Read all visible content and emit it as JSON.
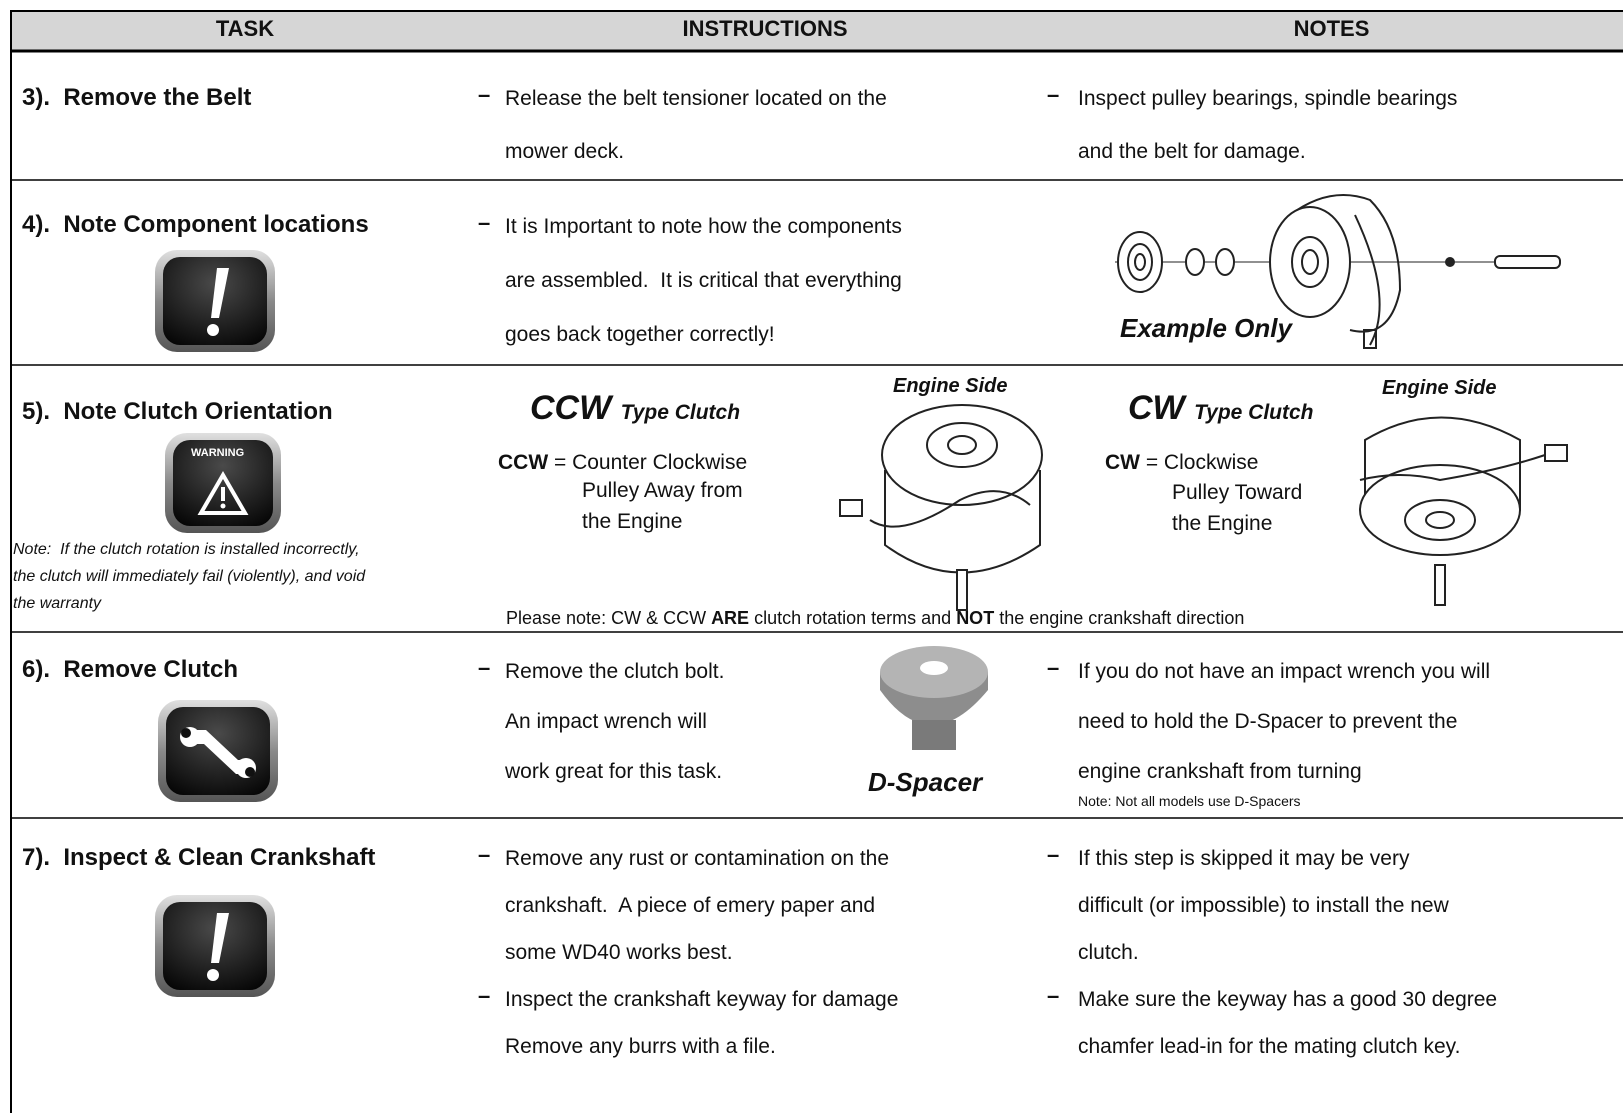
{
  "header": [
    "TASK",
    "INSTRUCTIONS",
    "NOTES"
  ],
  "rows": [
    {
      "task": "3).  Remove the Belt",
      "instructions": [
        [
          "Release the belt tensioner located on the",
          "mower deck."
        ]
      ],
      "notes": [
        [
          "Inspect pulley bearings, spindle bearings",
          "and the belt for damage."
        ]
      ]
    },
    {
      "task": "4).  Note Component locations",
      "instructions": [
        [
          "It is Important to note how the components",
          "are assembled.  It is critical that everything",
          "goes back together correctly!"
        ]
      ],
      "image_caption": "Example Only"
    },
    {
      "task": "5).  Note Clutch Orientation",
      "icon_label": "WARNING",
      "note": [
        "Note:  If the clutch rotation is installed incorrectly,",
        "the clutch will immediately fail (violently), and void",
        "the warranty"
      ],
      "ccw": {
        "abbr": "CCW",
        "type": "Type Clutch",
        "definition_abbr": "CCW",
        "definition": " = Counter Clockwise",
        "lines": [
          "Pulley Away from",
          "the Engine"
        ],
        "image_label": "Engine Side"
      },
      "cw": {
        "abbr": "CW",
        "type": "Type Clutch",
        "definition_abbr": "CW",
        "definition": " = Clockwise",
        "lines": [
          "Pulley Toward",
          "the Engine"
        ],
        "image_label": "Engine Side"
      },
      "footnote": [
        "Please note: CW & CCW ",
        "ARE",
        " clutch rotation terms and ",
        "NOT",
        " the engine crankshaft direction"
      ]
    },
    {
      "task": "6).  Remove Clutch",
      "instructions": [
        [
          "Remove the clutch bolt.",
          "An impact wrench will",
          "work great for this task."
        ]
      ],
      "image_caption": "D-Spacer",
      "notes": [
        [
          "If you do not have an impact wrench you will",
          "need to hold the D-Spacer to prevent the",
          "engine crankshaft from turning"
        ]
      ],
      "notes_small": "Note: Not all models use D-Spacers"
    },
    {
      "task": "7).  Inspect & Clean Crankshaft",
      "instructions": [
        [
          "Remove any rust or contamination on the",
          "crankshaft.  A piece of emery paper and",
          "some WD40 works best."
        ],
        [
          "Inspect the crankshaft keyway for damage",
          "Remove any burrs with a file."
        ]
      ],
      "notes": [
        [
          "If this step is skipped it may be very",
          "difficult (or impossible) to install the new",
          "clutch."
        ],
        [
          "Make sure the keyway has a good 30 degree",
          "chamfer lead-in for the mating clutch key."
        ]
      ]
    }
  ]
}
